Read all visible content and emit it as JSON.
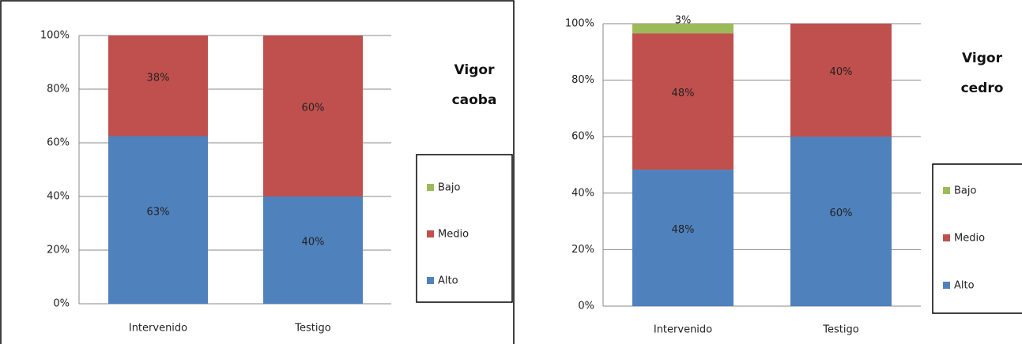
{
  "chart_data": [
    {
      "type": "bar",
      "stacked": true,
      "title": "Vigor caoba",
      "categories": [
        "Intervenido",
        "Testigo"
      ],
      "series": [
        {
          "name": "Alto",
          "color": "#4f81bd",
          "values": [
            62.5,
            40
          ],
          "value_labels": [
            "63%",
            "40%"
          ]
        },
        {
          "name": "Medio",
          "color": "#c0504d",
          "values": [
            37.5,
            60
          ],
          "value_labels": [
            "38%",
            "60%"
          ]
        },
        {
          "name": "Bajo",
          "color": "#9bbb59",
          "values": [
            0,
            0
          ],
          "value_labels": [
            null,
            null
          ]
        }
      ],
      "ylim": [
        0,
        100
      ],
      "yticks": [
        {
          "value": 0,
          "label": "0%"
        },
        {
          "value": 20,
          "label": "20%"
        },
        {
          "value": 40,
          "label": "40%"
        },
        {
          "value": 60,
          "label": "60%"
        },
        {
          "value": 80,
          "label": "80%"
        },
        {
          "value": 100,
          "label": "100%"
        }
      ],
      "grid": true,
      "legend": "right"
    },
    {
      "type": "bar",
      "stacked": true,
      "title": "Vigor cedro",
      "categories": [
        "Intervenido",
        "Testigo"
      ],
      "series": [
        {
          "name": "Alto",
          "color": "#4f81bd",
          "values": [
            48.3,
            60
          ],
          "value_labels": [
            "48%",
            "60%"
          ]
        },
        {
          "name": "Medio",
          "color": "#c0504d",
          "values": [
            48.3,
            40
          ],
          "value_labels": [
            "48%",
            "40%"
          ]
        },
        {
          "name": "Bajo",
          "color": "#9bbb59",
          "values": [
            3.4,
            0
          ],
          "value_labels": [
            "3%",
            null
          ]
        }
      ],
      "ylim": [
        0,
        100
      ],
      "yticks": [
        {
          "value": 0,
          "label": "0%"
        },
        {
          "value": 20,
          "label": "20%"
        },
        {
          "value": 40,
          "label": "40%"
        },
        {
          "value": 60,
          "label": "60%"
        },
        {
          "value": 80,
          "label": "80%"
        },
        {
          "value": 100,
          "label": "100%"
        }
      ],
      "grid": true,
      "legend": "right"
    }
  ]
}
